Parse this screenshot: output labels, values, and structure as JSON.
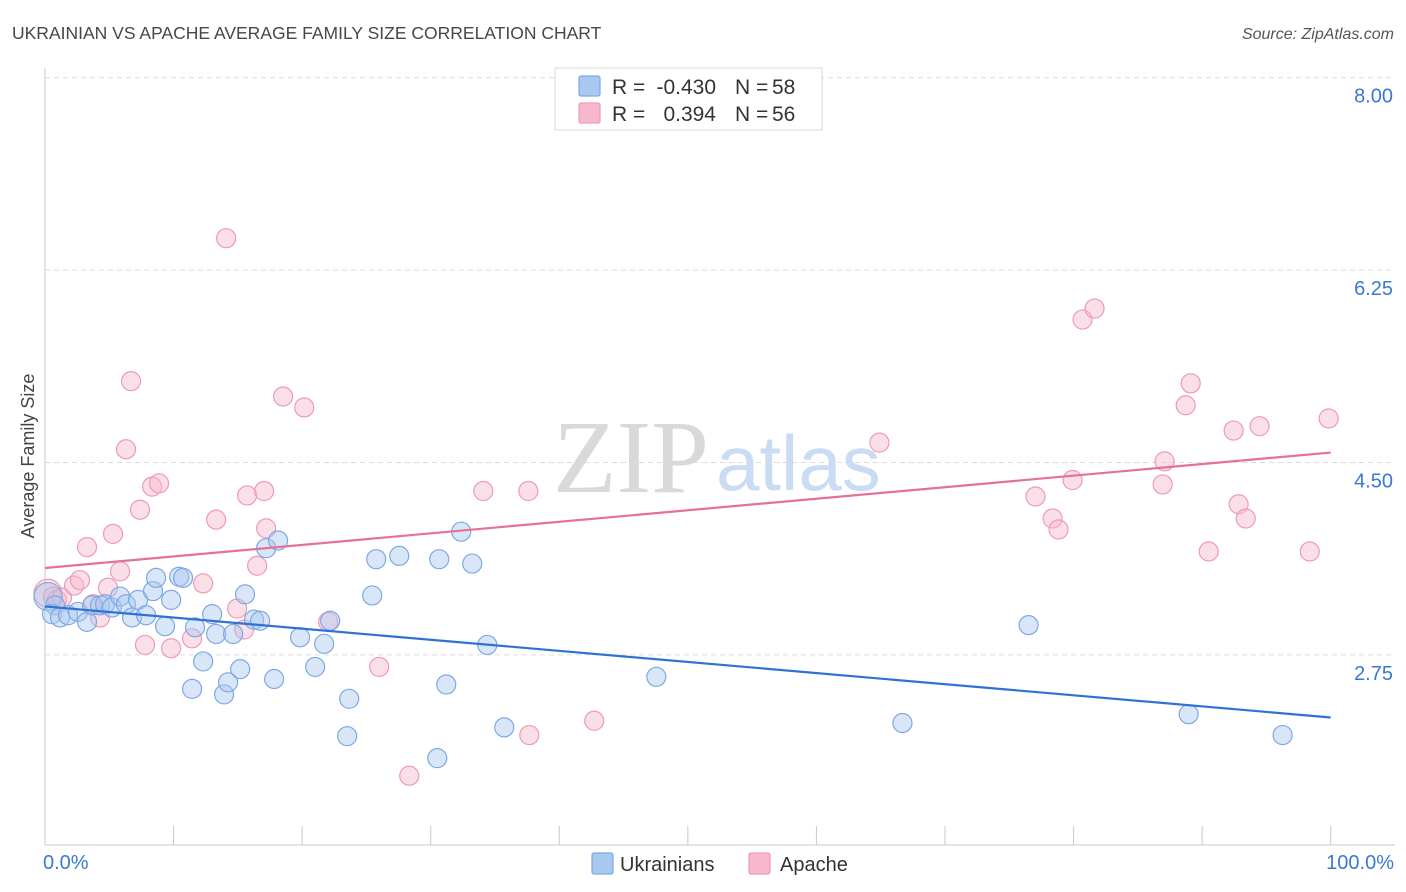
{
  "source": "Source: ZipAtlas.com",
  "watermark": {
    "zip": "ZIP",
    "atlas": "atlas"
  },
  "legend_labels": {
    "r": "R =",
    "n": "N ="
  },
  "colors": {
    "ukrainians_fill": "#a9c8f0",
    "ukrainians_stroke": "#7ea9e4",
    "ukrainians_line": "#2f72d4",
    "apache_fill": "#f7b8cd",
    "apache_stroke": "#ee9ab7",
    "apache_line": "#e5709a",
    "axis_text": "#3a78d4",
    "grid": "#dcdcdc",
    "axis": "#c8c8c8",
    "watermark_zip": "#d9d9d9",
    "watermark_atlas": "#c9dcf3"
  },
  "chart_data": {
    "type": "scatter",
    "title": "UKRAINIAN VS APACHE AVERAGE FAMILY SIZE CORRELATION CHART",
    "xlabel": "",
    "ylabel": "Average Family Size",
    "xlim": [
      0,
      105
    ],
    "ylim": [
      1.02,
      8.07
    ],
    "x_tick_marks": [
      0,
      10,
      20,
      30,
      40,
      50,
      60,
      70,
      80,
      90,
      100
    ],
    "x_tick_labels": [
      "0.0%",
      "100.0%"
    ],
    "y_ticks": [
      8.0,
      6.25,
      4.5,
      2.75
    ],
    "y_tick_labels": [
      "8.00",
      "6.25",
      "4.50",
      "2.75"
    ],
    "grid": true,
    "series": [
      {
        "name": "Ukrainians",
        "r": "-0.430",
        "n": "58",
        "trend": [
          [
            0,
            3.19
          ],
          [
            100,
            2.18
          ]
        ],
        "points": [
          [
            0.23,
            3.28
          ],
          [
            0.78,
            3.2
          ],
          [
            0.54,
            3.12
          ],
          [
            1.17,
            3.09
          ],
          [
            1.79,
            3.11
          ],
          [
            2.57,
            3.14
          ],
          [
            3.27,
            3.05
          ],
          [
            3.66,
            3.2
          ],
          [
            4.28,
            3.2
          ],
          [
            4.67,
            3.21
          ],
          [
            5.21,
            3.18
          ],
          [
            5.84,
            3.28
          ],
          [
            6.3,
            3.21
          ],
          [
            6.77,
            3.09
          ],
          [
            7.24,
            3.25
          ],
          [
            7.86,
            3.11
          ],
          [
            8.4,
            3.33
          ],
          [
            8.64,
            3.45
          ],
          [
            9.34,
            3.01
          ],
          [
            9.81,
            3.25
          ],
          [
            10.43,
            3.46
          ],
          [
            10.74,
            3.45
          ],
          [
            11.44,
            2.44
          ],
          [
            11.67,
            3.0
          ],
          [
            12.3,
            2.69
          ],
          [
            13.0,
            3.12
          ],
          [
            13.31,
            2.94
          ],
          [
            13.93,
            2.39
          ],
          [
            14.24,
            2.5
          ],
          [
            14.63,
            2.94
          ],
          [
            15.18,
            2.62
          ],
          [
            15.56,
            3.3
          ],
          [
            16.26,
            3.07
          ],
          [
            16.73,
            3.06
          ],
          [
            17.2,
            3.72
          ],
          [
            18.13,
            3.79
          ],
          [
            17.82,
            2.53
          ],
          [
            19.84,
            2.91
          ],
          [
            21.01,
            2.64
          ],
          [
            21.71,
            2.85
          ],
          [
            22.18,
            3.06
          ],
          [
            23.66,
            2.35
          ],
          [
            23.5,
            2.01
          ],
          [
            25.45,
            3.29
          ],
          [
            25.76,
            3.62
          ],
          [
            27.55,
            3.65
          ],
          [
            30.51,
            1.81
          ],
          [
            30.66,
            3.62
          ],
          [
            31.21,
            2.48
          ],
          [
            32.37,
            3.87
          ],
          [
            33.23,
            3.58
          ],
          [
            34.4,
            2.84
          ],
          [
            35.72,
            2.09
          ],
          [
            47.55,
            2.55
          ],
          [
            66.69,
            2.13
          ],
          [
            76.5,
            3.02
          ],
          [
            88.95,
            2.21
          ],
          [
            96.26,
            2.02
          ]
        ]
      },
      {
        "name": "Apache",
        "r": "0.394",
        "n": "56",
        "trend": [
          [
            0,
            3.54
          ],
          [
            100,
            4.59
          ]
        ],
        "points": [
          [
            0.23,
            3.31
          ],
          [
            0.62,
            3.28
          ],
          [
            0.93,
            3.25
          ],
          [
            1.32,
            3.27
          ],
          [
            2.26,
            3.38
          ],
          [
            2.72,
            3.43
          ],
          [
            3.27,
            3.73
          ],
          [
            3.74,
            3.21
          ],
          [
            4.28,
            3.09
          ],
          [
            4.9,
            3.36
          ],
          [
            5.29,
            3.85
          ],
          [
            5.84,
            3.51
          ],
          [
            6.3,
            4.62
          ],
          [
            6.69,
            5.24
          ],
          [
            7.39,
            4.07
          ],
          [
            7.78,
            2.84
          ],
          [
            8.33,
            4.28
          ],
          [
            8.87,
            4.31
          ],
          [
            9.81,
            2.81
          ],
          [
            11.44,
            2.9
          ],
          [
            12.3,
            3.4
          ],
          [
            13.31,
            3.98
          ],
          [
            14.09,
            6.54
          ],
          [
            14.94,
            3.17
          ],
          [
            15.49,
            2.98
          ],
          [
            15.72,
            4.2
          ],
          [
            16.5,
            3.56
          ],
          [
            17.04,
            4.24
          ],
          [
            17.2,
            3.9
          ],
          [
            18.52,
            5.1
          ],
          [
            20.16,
            5.0
          ],
          [
            22.02,
            3.05
          ],
          [
            25.99,
            2.64
          ],
          [
            28.33,
            1.65
          ],
          [
            34.09,
            4.24
          ],
          [
            37.59,
            4.24
          ],
          [
            37.67,
            2.02
          ],
          [
            42.72,
            2.15
          ],
          [
            64.9,
            4.68
          ],
          [
            77.04,
            4.19
          ],
          [
            78.37,
            3.99
          ],
          [
            78.83,
            3.89
          ],
          [
            79.92,
            4.34
          ],
          [
            80.7,
            5.8
          ],
          [
            81.63,
            5.9
          ],
          [
            86.93,
            4.3
          ],
          [
            87.08,
            4.51
          ],
          [
            88.72,
            5.02
          ],
          [
            89.11,
            5.22
          ],
          [
            90.51,
            3.69
          ],
          [
            92.45,
            4.79
          ],
          [
            92.84,
            4.12
          ],
          [
            93.39,
            3.99
          ],
          [
            94.47,
            4.83
          ],
          [
            98.37,
            3.69
          ],
          [
            99.84,
            4.9
          ]
        ]
      }
    ]
  }
}
